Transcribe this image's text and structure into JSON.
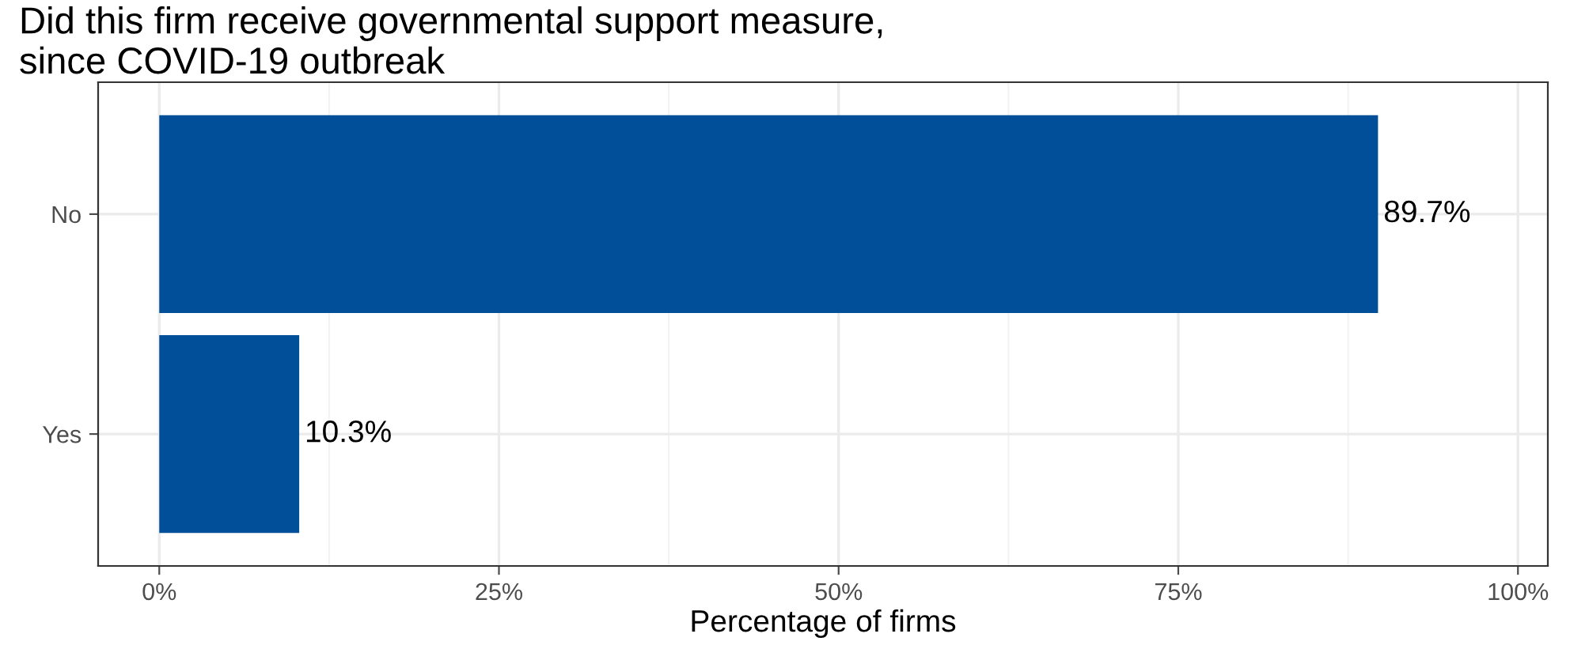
{
  "chart_data": {
    "type": "bar",
    "orientation": "horizontal",
    "title": "Did this firm receive governmental support measure,\nsince COVID-19 outbreak",
    "xlabel": "Percentage of firms",
    "categories": [
      "No",
      "Yes"
    ],
    "values": [
      89.7,
      10.3
    ],
    "color": "#004f98",
    "value_labels": [
      "89.7%",
      "10.3%"
    ],
    "xlim": [
      -4.5,
      102.2
    ],
    "xticks": [
      {
        "value": 0,
        "label": "0%"
      },
      {
        "value": 25,
        "label": "25%"
      },
      {
        "value": 50,
        "label": "50%"
      },
      {
        "value": 75,
        "label": "75%"
      },
      {
        "value": 100,
        "label": "100%"
      }
    ],
    "grid": true,
    "legend": false
  }
}
